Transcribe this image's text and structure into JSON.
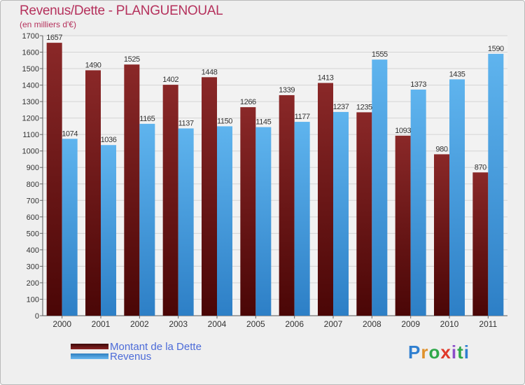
{
  "title": "Revenus/Dette - PLANGUENOUAL",
  "subtitle": "(en milliers d'€)",
  "logo": {
    "text": "Proxiti",
    "letter_colors": [
      "#2f7fd0",
      "#e0912b",
      "#2fa84a",
      "#e03a2b",
      "#8c4cc8",
      "#2fa84a",
      "#2f7fd0"
    ]
  },
  "chart_data": {
    "type": "bar",
    "categories": [
      "2000",
      "2001",
      "2002",
      "2003",
      "2004",
      "2005",
      "2006",
      "2007",
      "2008",
      "2009",
      "2010",
      "2011"
    ],
    "series": [
      {
        "name": "Montant de la Dette",
        "color": "#7b1c1c",
        "values": [
          1657,
          1490,
          1525,
          1402,
          1448,
          1266,
          1339,
          1413,
          1235,
          1093,
          980,
          870
        ]
      },
      {
        "name": "Revenus",
        "color": "#4aa3e6",
        "values": [
          1074,
          1036,
          1165,
          1137,
          1150,
          1145,
          1177,
          1237,
          1555,
          1373,
          1435,
          1590
        ]
      }
    ],
    "ylim": [
      0,
      1700
    ],
    "yticks": [
      0,
      100,
      200,
      300,
      400,
      500,
      600,
      700,
      800,
      900,
      1000,
      1100,
      1200,
      1300,
      1400,
      1500,
      1600,
      1700
    ],
    "grid": true,
    "legend_position": "bottom-left"
  }
}
